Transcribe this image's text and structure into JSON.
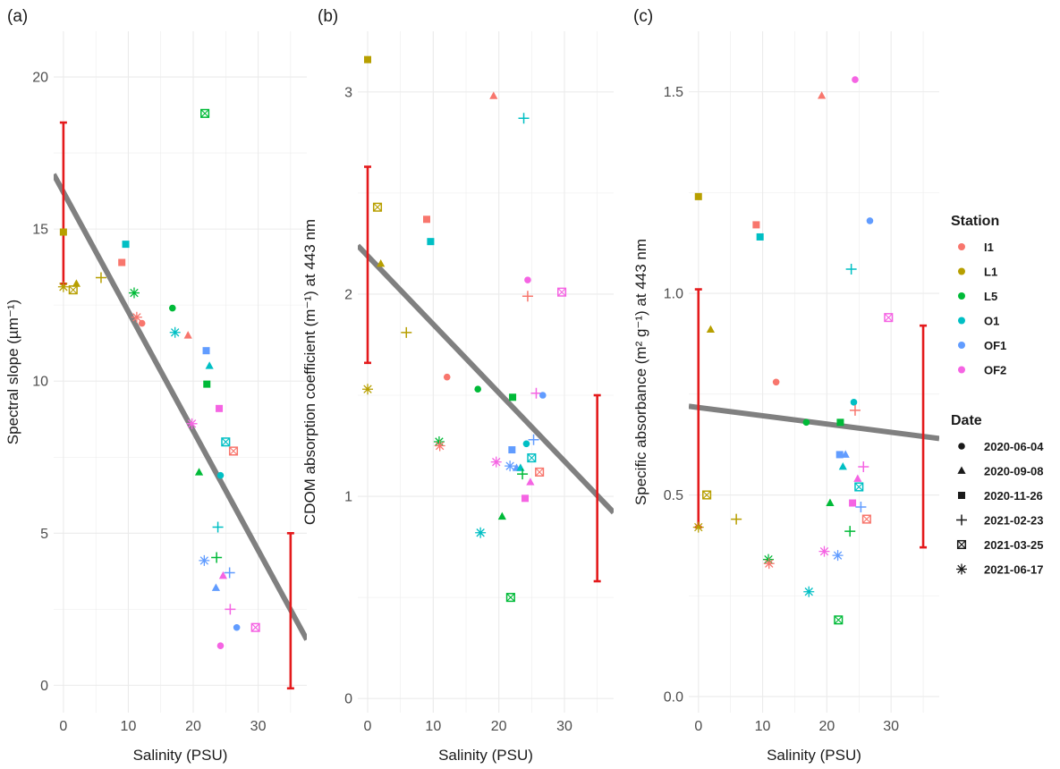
{
  "chart_data": [
    {
      "type": "scatter",
      "panel_label": "(a)",
      "title": "",
      "xlabel": "Salinity (PSU)",
      "ylabel": "Spectral slope (µm⁻¹)",
      "xlim": [
        -1.5,
        37.5
      ],
      "ylim": [
        -0.9,
        21.5
      ],
      "xticks": [
        0,
        10,
        20,
        30
      ],
      "yticks": [
        0,
        5,
        10,
        15,
        20
      ],
      "regression_line": {
        "x": [
          -1.5,
          37.5
        ],
        "y": [
          16.8,
          1.5
        ]
      },
      "error_bars": [
        {
          "x": 0,
          "ymin": 13.2,
          "ymax": 18.5
        },
        {
          "x": 35,
          "ymin": -0.1,
          "ymax": 5.0
        }
      ],
      "points": [
        {
          "station": "L1",
          "date": "2020-11-26",
          "x": 0.0,
          "y": 14.9
        },
        {
          "station": "L1",
          "date": "2021-06-17",
          "x": 0.0,
          "y": 13.1
        },
        {
          "station": "L1",
          "date": "2021-03-25",
          "x": 1.5,
          "y": 13.0
        },
        {
          "station": "L1",
          "date": "2020-09-08",
          "x": 2.0,
          "y": 13.2
        },
        {
          "station": "L1",
          "date": "2021-02-23",
          "x": 5.8,
          "y": 13.4
        },
        {
          "station": "I1",
          "date": "2020-11-26",
          "x": 9.0,
          "y": 13.9
        },
        {
          "station": "O1",
          "date": "2020-11-26",
          "x": 9.6,
          "y": 14.5
        },
        {
          "station": "L5",
          "date": "2021-06-17",
          "x": 10.9,
          "y": 12.9
        },
        {
          "station": "I1",
          "date": "2021-06-17",
          "x": 11.3,
          "y": 12.1
        },
        {
          "station": "I1",
          "date": "2020-06-04",
          "x": 12.1,
          "y": 11.9
        },
        {
          "station": "L5",
          "date": "2020-06-04",
          "x": 16.8,
          "y": 12.4
        },
        {
          "station": "O1",
          "date": "2021-06-17",
          "x": 17.2,
          "y": 11.6
        },
        {
          "station": "I1",
          "date": "2020-09-08",
          "x": 19.2,
          "y": 11.5
        },
        {
          "station": "L5",
          "date": "2021-03-25",
          "x": 21.8,
          "y": 18.8
        },
        {
          "station": "OF1",
          "date": "2020-11-26",
          "x": 22.0,
          "y": 11.0
        },
        {
          "station": "O1",
          "date": "2020-09-08",
          "x": 22.5,
          "y": 10.5
        },
        {
          "station": "L5",
          "date": "2020-11-26",
          "x": 22.1,
          "y": 9.9
        },
        {
          "station": "OF2",
          "date": "2020-11-26",
          "x": 24.0,
          "y": 9.1
        },
        {
          "station": "OF2",
          "date": "2021-06-17",
          "x": 19.8,
          "y": 8.6
        },
        {
          "station": "O1",
          "date": "2021-03-25",
          "x": 25.0,
          "y": 8.0
        },
        {
          "station": "I1",
          "date": "2021-03-25",
          "x": 26.2,
          "y": 7.7
        },
        {
          "station": "L5",
          "date": "2020-09-08",
          "x": 20.9,
          "y": 7.0
        },
        {
          "station": "O1",
          "date": "2020-06-04",
          "x": 24.2,
          "y": 6.9
        },
        {
          "station": "O1",
          "date": "2021-02-23",
          "x": 23.8,
          "y": 5.2
        },
        {
          "station": "L5",
          "date": "2021-02-23",
          "x": 23.6,
          "y": 4.2
        },
        {
          "station": "OF1",
          "date": "2021-06-17",
          "x": 21.7,
          "y": 4.1
        },
        {
          "station": "OF1",
          "date": "2021-02-23",
          "x": 25.6,
          "y": 3.7
        },
        {
          "station": "OF2",
          "date": "2020-09-08",
          "x": 24.6,
          "y": 3.6
        },
        {
          "station": "OF1",
          "date": "2020-09-08",
          "x": 23.5,
          "y": 3.2
        },
        {
          "station": "OF2",
          "date": "2021-02-23",
          "x": 25.7,
          "y": 2.5
        },
        {
          "station": "OF1",
          "date": "2020-06-04",
          "x": 26.7,
          "y": 1.9
        },
        {
          "station": "OF2",
          "date": "2021-03-25",
          "x": 29.6,
          "y": 1.9
        },
        {
          "station": "OF2",
          "date": "2020-06-04",
          "x": 24.2,
          "y": 1.3
        }
      ]
    },
    {
      "type": "scatter",
      "panel_label": "(b)",
      "title": "",
      "xlabel": "Salinity (PSU)",
      "ylabel": "CDOM absorption coefficient (m⁻¹) at 443 nm",
      "xlim": [
        -1.5,
        37.5
      ],
      "ylim": [
        -0.07,
        3.3
      ],
      "xticks": [
        0,
        10,
        20,
        30
      ],
      "yticks": [
        0,
        1,
        2,
        3
      ],
      "regression_line": {
        "x": [
          -1.5,
          37.5
        ],
        "y": [
          2.24,
          0.92
        ]
      },
      "error_bars": [
        {
          "x": 0,
          "ymin": 1.66,
          "ymax": 2.63
        },
        {
          "x": 35,
          "ymin": 0.58,
          "ymax": 1.5
        }
      ],
      "points": [
        {
          "station": "L1",
          "date": "2020-11-26",
          "x": 0.0,
          "y": 3.16
        },
        {
          "station": "L1",
          "date": "2021-03-25",
          "x": 1.5,
          "y": 2.43
        },
        {
          "station": "L1",
          "date": "2020-09-08",
          "x": 2.0,
          "y": 2.15
        },
        {
          "station": "L1",
          "date": "2021-02-23",
          "x": 5.9,
          "y": 1.81
        },
        {
          "station": "L1",
          "date": "2021-06-17",
          "x": 0.0,
          "y": 1.53
        },
        {
          "station": "I1",
          "date": "2020-11-26",
          "x": 9.0,
          "y": 2.37
        },
        {
          "station": "O1",
          "date": "2020-11-26",
          "x": 9.6,
          "y": 2.26
        },
        {
          "station": "I1",
          "date": "2020-09-08",
          "x": 19.2,
          "y": 2.98
        },
        {
          "station": "O1",
          "date": "2021-02-23",
          "x": 23.8,
          "y": 2.87
        },
        {
          "station": "OF2",
          "date": "2020-06-04",
          "x": 24.4,
          "y": 2.07
        },
        {
          "station": "I1",
          "date": "2021-02-23",
          "x": 24.4,
          "y": 1.99
        },
        {
          "station": "OF2",
          "date": "2021-03-25",
          "x": 29.6,
          "y": 2.01
        },
        {
          "station": "I1",
          "date": "2020-06-04",
          "x": 12.1,
          "y": 1.59
        },
        {
          "station": "L5",
          "date": "2020-06-04",
          "x": 16.8,
          "y": 1.53
        },
        {
          "station": "L5",
          "date": "2020-11-26",
          "x": 22.1,
          "y": 1.49
        },
        {
          "station": "OF2",
          "date": "2021-02-23",
          "x": 25.7,
          "y": 1.51
        },
        {
          "station": "OF1",
          "date": "2020-06-04",
          "x": 26.7,
          "y": 1.5
        },
        {
          "station": "L5",
          "date": "2021-06-17",
          "x": 10.9,
          "y": 1.27
        },
        {
          "station": "I1",
          "date": "2021-06-17",
          "x": 11.0,
          "y": 1.25
        },
        {
          "station": "OF1",
          "date": "2021-02-23",
          "x": 25.3,
          "y": 1.28
        },
        {
          "station": "O1",
          "date": "2020-06-04",
          "x": 24.2,
          "y": 1.26
        },
        {
          "station": "OF1",
          "date": "2020-11-26",
          "x": 22.0,
          "y": 1.23
        },
        {
          "station": "O1",
          "date": "2021-03-25",
          "x": 25.0,
          "y": 1.19
        },
        {
          "station": "OF2",
          "date": "2021-06-17",
          "x": 19.6,
          "y": 1.17
        },
        {
          "station": "OF1",
          "date": "2021-06-17",
          "x": 21.7,
          "y": 1.15
        },
        {
          "station": "OF1",
          "date": "2020-09-08",
          "x": 22.7,
          "y": 1.14
        },
        {
          "station": "O1",
          "date": "2020-09-08",
          "x": 23.3,
          "y": 1.14
        },
        {
          "station": "I1",
          "date": "2021-03-25",
          "x": 26.2,
          "y": 1.12
        },
        {
          "station": "L5",
          "date": "2021-02-23",
          "x": 23.6,
          "y": 1.11
        },
        {
          "station": "OF2",
          "date": "2020-09-08",
          "x": 24.8,
          "y": 1.07
        },
        {
          "station": "OF2",
          "date": "2020-11-26",
          "x": 24.0,
          "y": 0.99
        },
        {
          "station": "L5",
          "date": "2020-09-08",
          "x": 20.5,
          "y": 0.9
        },
        {
          "station": "O1",
          "date": "2021-06-17",
          "x": 17.2,
          "y": 0.82
        },
        {
          "station": "L5",
          "date": "2021-03-25",
          "x": 21.8,
          "y": 0.5
        }
      ]
    },
    {
      "type": "scatter",
      "panel_label": "(c)",
      "title": "",
      "xlabel": "Salinity (PSU)",
      "ylabel": "Specific absorbance (m² g⁻¹) at 443 nm",
      "xlim": [
        -1.5,
        37.5
      ],
      "ylim": [
        -0.04,
        1.65
      ],
      "xticks": [
        0,
        10,
        20,
        30
      ],
      "yticks": [
        0.0,
        0.5,
        1.0,
        1.5
      ],
      "regression_line": {
        "x": [
          -1.5,
          37.5
        ],
        "y": [
          0.72,
          0.64
        ]
      },
      "error_bars": [
        {
          "x": 0,
          "ymin": 0.42,
          "ymax": 1.01
        },
        {
          "x": 35,
          "ymin": 0.37,
          "ymax": 0.92
        }
      ],
      "points": [
        {
          "station": "L1",
          "date": "2020-11-26",
          "x": 0.0,
          "y": 1.24
        },
        {
          "station": "L1",
          "date": "2020-09-08",
          "x": 1.9,
          "y": 0.91
        },
        {
          "station": "L1",
          "date": "2021-03-25",
          "x": 1.3,
          "y": 0.5
        },
        {
          "station": "L1",
          "date": "2021-02-23",
          "x": 5.9,
          "y": 0.44
        },
        {
          "station": "L1",
          "date": "2021-06-17",
          "x": 0.0,
          "y": 0.42
        },
        {
          "station": "I1",
          "date": "2020-11-26",
          "x": 9.0,
          "y": 1.17
        },
        {
          "station": "O1",
          "date": "2020-11-26",
          "x": 9.6,
          "y": 1.14
        },
        {
          "station": "I1",
          "date": "2020-09-08",
          "x": 19.2,
          "y": 1.49
        },
        {
          "station": "OF2",
          "date": "2020-06-04",
          "x": 24.4,
          "y": 1.53
        },
        {
          "station": "OF1",
          "date": "2020-06-04",
          "x": 26.7,
          "y": 1.18
        },
        {
          "station": "O1",
          "date": "2021-02-23",
          "x": 23.8,
          "y": 1.06
        },
        {
          "station": "OF2",
          "date": "2021-03-25",
          "x": 29.6,
          "y": 0.94
        },
        {
          "station": "I1",
          "date": "2020-06-04",
          "x": 12.1,
          "y": 0.78
        },
        {
          "station": "O1",
          "date": "2020-06-04",
          "x": 24.2,
          "y": 0.73
        },
        {
          "station": "I1",
          "date": "2021-02-23",
          "x": 24.4,
          "y": 0.71
        },
        {
          "station": "L5",
          "date": "2020-06-04",
          "x": 16.8,
          "y": 0.68
        },
        {
          "station": "L5",
          "date": "2020-11-26",
          "x": 22.1,
          "y": 0.68
        },
        {
          "station": "OF1",
          "date": "2020-11-26",
          "x": 22.0,
          "y": 0.6
        },
        {
          "station": "OF1",
          "date": "2020-09-08",
          "x": 22.9,
          "y": 0.6
        },
        {
          "station": "O1",
          "date": "2020-09-08",
          "x": 22.5,
          "y": 0.57
        },
        {
          "station": "OF2",
          "date": "2021-02-23",
          "x": 25.7,
          "y": 0.57
        },
        {
          "station": "OF2",
          "date": "2020-09-08",
          "x": 24.8,
          "y": 0.54
        },
        {
          "station": "O1",
          "date": "2021-03-25",
          "x": 25.0,
          "y": 0.52
        },
        {
          "station": "OF2",
          "date": "2020-11-26",
          "x": 24.0,
          "y": 0.48
        },
        {
          "station": "L5",
          "date": "2020-09-08",
          "x": 20.5,
          "y": 0.48
        },
        {
          "station": "OF1",
          "date": "2021-02-23",
          "x": 25.3,
          "y": 0.47
        },
        {
          "station": "I1",
          "date": "2021-03-25",
          "x": 26.2,
          "y": 0.44
        },
        {
          "station": "L5",
          "date": "2021-02-23",
          "x": 23.6,
          "y": 0.41
        },
        {
          "station": "OF2",
          "date": "2021-06-17",
          "x": 19.6,
          "y": 0.36
        },
        {
          "station": "OF1",
          "date": "2021-06-17",
          "x": 21.7,
          "y": 0.35
        },
        {
          "station": "L5",
          "date": "2021-06-17",
          "x": 10.9,
          "y": 0.34
        },
        {
          "station": "I1",
          "date": "2021-06-17",
          "x": 11.0,
          "y": 0.33
        },
        {
          "station": "O1",
          "date": "2021-06-17",
          "x": 17.2,
          "y": 0.26
        },
        {
          "station": "L5",
          "date": "2021-03-25",
          "x": 21.8,
          "y": 0.19
        }
      ]
    }
  ],
  "legend": {
    "station_title": "Station",
    "stations": [
      {
        "name": "I1",
        "color": "#F8766D"
      },
      {
        "name": "L1",
        "color": "#B79F00"
      },
      {
        "name": "L5",
        "color": "#00BA38"
      },
      {
        "name": "O1",
        "color": "#00BFC4"
      },
      {
        "name": "OF1",
        "color": "#619CFF"
      },
      {
        "name": "OF2",
        "color": "#F564E3"
      }
    ],
    "date_title": "Date",
    "dates": [
      {
        "name": "2020-06-04",
        "shape": "circle"
      },
      {
        "name": "2020-09-08",
        "shape": "triangle"
      },
      {
        "name": "2020-11-26",
        "shape": "square"
      },
      {
        "name": "2021-02-23",
        "shape": "plus"
      },
      {
        "name": "2021-03-25",
        "shape": "boxed-x"
      },
      {
        "name": "2021-06-17",
        "shape": "asterisk"
      }
    ]
  },
  "colors": {
    "regression": "#808080",
    "error_bar": "#E41A1C",
    "grid": "#EBEBEB"
  }
}
